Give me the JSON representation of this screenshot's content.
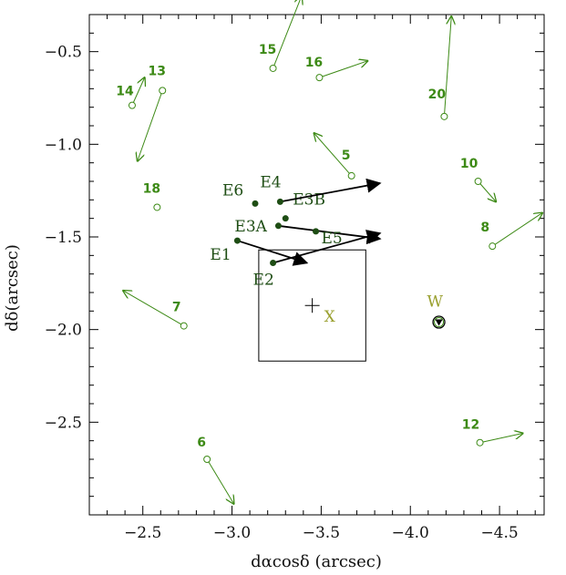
{
  "chart_data": {
    "type": "scatter",
    "title": "",
    "xlabel": "dαcosδ (arcsec)",
    "ylabel": "dδ(arcsec)",
    "xlim": [
      -2.2,
      -4.75
    ],
    "ylim": [
      -3.0,
      -0.3
    ],
    "x_ticks": [
      -2.5,
      -3.0,
      -3.5,
      -4.0,
      -4.5
    ],
    "x_tick_labels": [
      "−2.5",
      "−3.0",
      "−3.5",
      "−4.0",
      "−4.5"
    ],
    "y_ticks": [
      -0.5,
      -1.0,
      -1.5,
      -2.0,
      -2.5
    ],
    "y_tick_labels": [
      "−0.5",
      "−1.0",
      "−1.5",
      "−2.0",
      "−2.5"
    ],
    "grid": false,
    "colors": {
      "star": "#3d8a16",
      "maser": "#1e4d14",
      "label_x_w": "#9aa030",
      "frame": "#000000"
    },
    "field_stars": [
      {
        "label": "15",
        "x": -3.23,
        "y": -0.59,
        "x_end": -3.39,
        "y_end": -0.2
      },
      {
        "label": "16",
        "x": -3.49,
        "y": -0.64,
        "x_end": -3.76,
        "y_end": -0.55
      },
      {
        "label": "14",
        "x": -2.44,
        "y": -0.79,
        "x_end": -2.51,
        "y_end": -0.64
      },
      {
        "label": "13",
        "x": -2.61,
        "y": -0.71,
        "x_end": -2.47,
        "y_end": -1.09
      },
      {
        "label": "20",
        "x": -4.19,
        "y": -0.85,
        "x_end": -4.23,
        "y_end": -0.31
      },
      {
        "label": "5",
        "x": -3.67,
        "y": -1.17,
        "x_end": -3.46,
        "y_end": -0.94
      },
      {
        "label": "10",
        "x": -4.38,
        "y": -1.2,
        "x_end": -4.48,
        "y_end": -1.31
      },
      {
        "label": "18",
        "x": -2.58,
        "y": -1.34,
        "x_end": null,
        "y_end": null
      },
      {
        "label": "8",
        "x": -4.46,
        "y": -1.55,
        "x_end": -4.74,
        "y_end": -1.37
      },
      {
        "label": "7",
        "x": -2.73,
        "y": -1.98,
        "x_end": -2.39,
        "y_end": -1.79
      },
      {
        "label": "12",
        "x": -4.39,
        "y": -2.61,
        "x_end": -4.63,
        "y_end": -2.56
      },
      {
        "label": "6",
        "x": -2.86,
        "y": -2.7,
        "x_end": -3.01,
        "y_end": -2.94
      }
    ],
    "masers": [
      {
        "label": "E1",
        "x": -3.03,
        "y": -1.52,
        "x_end": -3.42,
        "y_end": -1.64,
        "label_dx": -30,
        "label_dy": 21
      },
      {
        "label": "E2",
        "x": -3.23,
        "y": -1.64,
        "x_end": -3.83,
        "y_end": -1.48,
        "label_dx": -22,
        "label_dy": 24
      },
      {
        "label": "E3A",
        "x": -3.26,
        "y": -1.44,
        "x_end": -3.83,
        "y_end": -1.51,
        "label_dx": -48,
        "label_dy": 6
      },
      {
        "label": "E3B",
        "x": -3.3,
        "y": -1.4,
        "x_end": null,
        "y_end": null,
        "label_dx": 8,
        "label_dy": -15
      },
      {
        "label": "E4",
        "x": -3.27,
        "y": -1.31,
        "x_end": -3.83,
        "y_end": -1.21,
        "label_dx": -22,
        "label_dy": -16
      },
      {
        "label": "E5",
        "x": -3.47,
        "y": -1.47,
        "x_end": null,
        "y_end": null,
        "label_dx": 6,
        "label_dy": 13
      },
      {
        "label": "E6",
        "x": -3.13,
        "y": -1.32,
        "x_end": null,
        "y_end": null,
        "label_dx": -36,
        "label_dy": -9
      }
    ],
    "source_x": {
      "label": "X",
      "x": -3.45,
      "y": -1.87
    },
    "source_w": {
      "label": "W",
      "x": -4.16,
      "y": -1.96
    },
    "error_box": {
      "x_min": -3.15,
      "x_max": -3.75,
      "y_min": -2.17,
      "y_max": -1.57
    }
  }
}
